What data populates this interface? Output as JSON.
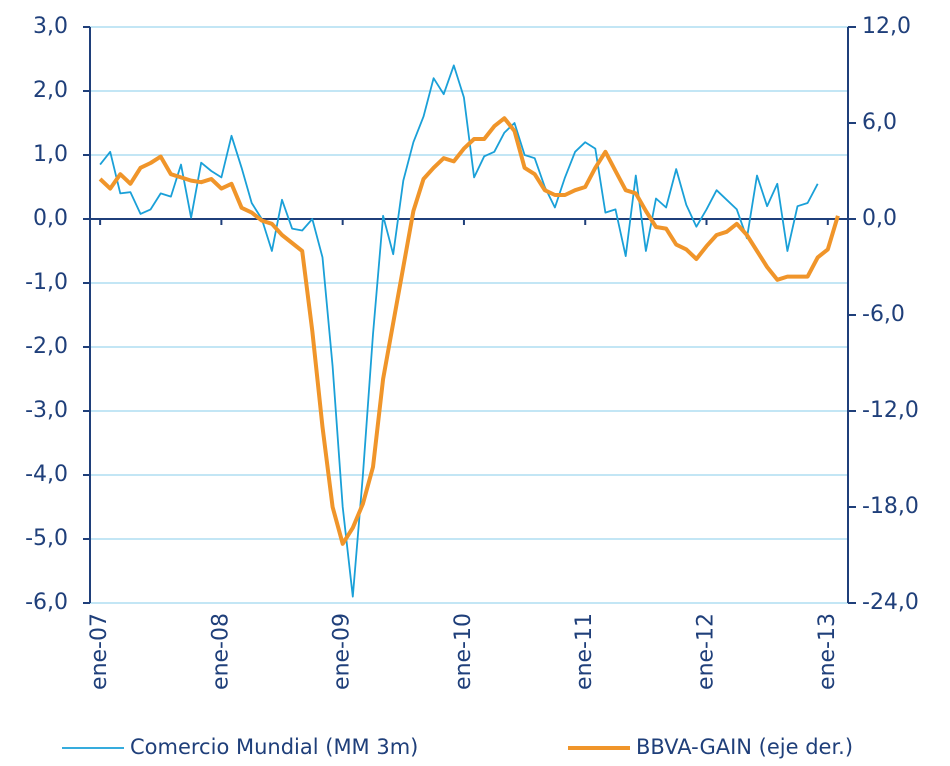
{
  "chart_data": {
    "type": "line",
    "categories": [
      "ene-07",
      null,
      null,
      null,
      null,
      null,
      null,
      null,
      null,
      null,
      null,
      null,
      "ene-08",
      null,
      null,
      null,
      null,
      null,
      null,
      null,
      null,
      null,
      null,
      null,
      "ene-09",
      null,
      null,
      null,
      null,
      null,
      null,
      null,
      null,
      null,
      null,
      null,
      "ene-10",
      null,
      null,
      null,
      null,
      null,
      null,
      null,
      null,
      null,
      null,
      null,
      "ene-11",
      null,
      null,
      null,
      null,
      null,
      null,
      null,
      null,
      null,
      null,
      null,
      "ene-12",
      null,
      null,
      null,
      null,
      null,
      null,
      null,
      null,
      null,
      null,
      null,
      "ene-13",
      null
    ],
    "series": [
      {
        "name": "Comercio Mundial (MM 3m)",
        "color": "#1aa0d8",
        "axis": "y",
        "values": [
          0.85,
          1.05,
          0.4,
          0.42,
          0.08,
          0.15,
          0.4,
          0.35,
          0.85,
          0.02,
          0.88,
          0.75,
          0.65,
          1.3,
          0.8,
          0.25,
          0.0,
          -0.5,
          0.3,
          -0.15,
          -0.18,
          0.0,
          -0.6,
          -2.3,
          -4.5,
          -5.9,
          -4.0,
          -1.8,
          0.05,
          -0.55,
          0.6,
          1.2,
          1.6,
          2.2,
          1.95,
          2.4,
          1.9,
          0.65,
          0.98,
          1.05,
          1.35,
          1.5,
          1.0,
          0.95,
          0.5,
          0.18,
          0.65,
          1.05,
          1.2,
          1.1,
          0.1,
          0.15,
          -0.58,
          0.68,
          -0.5,
          0.32,
          0.18,
          0.78,
          0.22,
          -0.12,
          0.15,
          0.45,
          0.3,
          0.15,
          -0.3,
          0.68,
          0.2,
          0.55,
          -0.5,
          0.2,
          0.25,
          0.55,
          null,
          null
        ]
      },
      {
        "name": "BBVA-GAIN (eje der.)",
        "color": "#f0952a",
        "axis": "y2",
        "values": [
          2.5,
          1.9,
          2.8,
          2.2,
          3.2,
          3.5,
          3.9,
          2.8,
          2.6,
          2.4,
          2.3,
          2.5,
          1.9,
          2.2,
          0.7,
          0.4,
          -0.1,
          -0.3,
          -1.0,
          -1.5,
          -2.0,
          -7.0,
          -13.0,
          -18.0,
          -20.3,
          -19.3,
          -17.8,
          -15.5,
          -10.0,
          -6.5,
          -3.0,
          0.5,
          2.5,
          3.2,
          3.8,
          3.6,
          4.4,
          5.0,
          5.0,
          5.8,
          6.3,
          5.5,
          3.2,
          2.8,
          1.8,
          1.5,
          1.5,
          1.8,
          2.0,
          3.2,
          4.2,
          3.0,
          1.8,
          1.6,
          0.5,
          -0.5,
          -0.6,
          -1.6,
          -1.9,
          -2.5,
          -1.7,
          -1.0,
          -0.8,
          -0.3,
          -1.0,
          -2.0,
          -3.0,
          -3.8,
          -3.6,
          -3.6,
          -3.6,
          -2.4,
          -1.9,
          0.2
        ]
      }
    ],
    "ylim": [
      -6,
      3
    ],
    "yticks": [
      {
        "value": 3,
        "label": "3,0"
      },
      {
        "value": 2,
        "label": "2,0"
      },
      {
        "value": 1,
        "label": "1,0"
      },
      {
        "value": 0,
        "label": "0,0"
      },
      {
        "value": -1,
        "label": "-1,0"
      },
      {
        "value": -2,
        "label": "-2,0"
      },
      {
        "value": -3,
        "label": "-3,0"
      },
      {
        "value": -4,
        "label": "-4,0"
      },
      {
        "value": -5,
        "label": "-5,0"
      },
      {
        "value": -6,
        "label": "-6,0"
      }
    ],
    "y2lim": [
      -24,
      12
    ],
    "y2ticks": [
      {
        "value": 12,
        "label": "12,0"
      },
      {
        "value": 6,
        "label": "6,0"
      },
      {
        "value": 0,
        "label": "0,0"
      },
      {
        "value": -6,
        "label": "-6,0"
      },
      {
        "value": -12,
        "label": "-12,0"
      },
      {
        "value": -18,
        "label": "-18,0"
      },
      {
        "value": -24,
        "label": "-24,0"
      }
    ],
    "grid": true,
    "legend": "bottom"
  }
}
